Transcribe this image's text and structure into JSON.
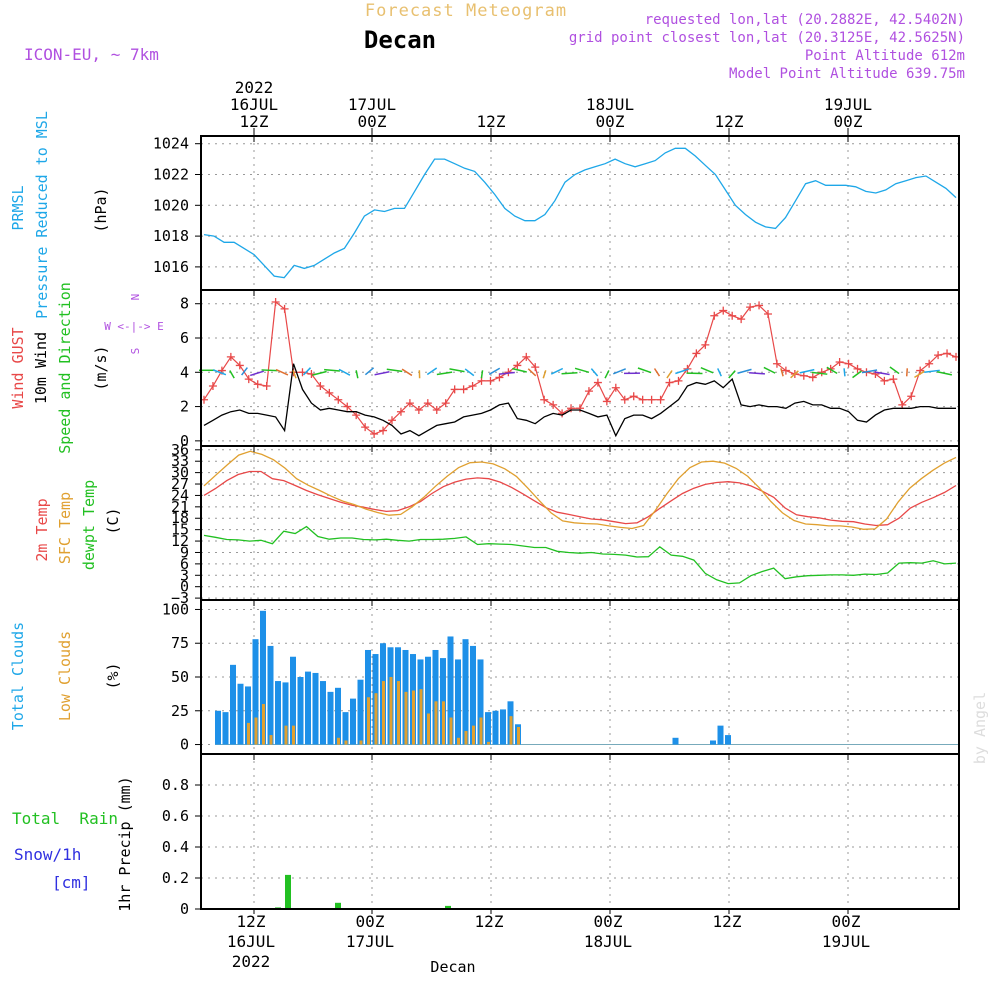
{
  "header": {
    "suptitle": "Forecast Meteogram",
    "location": "Decan",
    "model": "ICON-EU, ~ 7km",
    "requested": "requested lon,lat (20.2882E, 42.5402N)",
    "gridpoint": "grid point closest lon,lat (20.3125E, 42.5625N)",
    "altitude": "Point Altitude 612m",
    "model_altitude": "Model Point Altitude 639.75m",
    "footer_location": "Decan",
    "watermark": "by Angel"
  },
  "top_axis": [
    {
      "line1": "2022",
      "line2": "16JUL",
      "line3": "12Z"
    },
    {
      "line1": "",
      "line2": "17JUL",
      "line3": "00Z"
    },
    {
      "line1": "",
      "line2": "",
      "line3": "12Z"
    },
    {
      "line1": "",
      "line2": "18JUL",
      "line3": "00Z"
    },
    {
      "line1": "",
      "line2": "",
      "line3": "12Z"
    },
    {
      "line1": "",
      "line2": "19JUL",
      "line3": "00Z"
    }
  ],
  "bottom_axis": [
    {
      "line1": "12Z",
      "line2": "16JUL",
      "line3": "2022"
    },
    {
      "line1": "00Z",
      "line2": "17JUL",
      "line3": ""
    },
    {
      "line1": "12Z",
      "line2": "",
      "line3": ""
    },
    {
      "line1": "00Z",
      "line2": "18JUL",
      "line3": ""
    },
    {
      "line1": "12Z",
      "line2": "",
      "line3": ""
    },
    {
      "line1": "00Z",
      "line2": "19JUL",
      "line3": ""
    }
  ],
  "labels": {
    "prmsl": "PRMSL",
    "prmsl_long": "Pressure Reduced to MSL",
    "hpa": "(hPa)",
    "gust": "Wind GUST",
    "wind10m": "10m Wind",
    "wind_dir": "Speed and Direction",
    "ms": "(m/s)",
    "compass_n": "N",
    "compass_s": "S",
    "compass_we": "W <-|-> E",
    "temp2m": "2m Temp",
    "sfc_temp": "SFC Temp",
    "dewpt": "dewpt Temp",
    "degc": "(C)",
    "total_clouds": "Total Clouds",
    "low_clouds": "Low Clouds",
    "pct": "(%)",
    "total_rain": "Total  Rain",
    "snow": "Snow/1h",
    "cm": "[cm]",
    "precip": "1hr Precip (mm)"
  },
  "colors": {
    "pressure": "#1ea7e8",
    "gust": "#e84848",
    "wind": "#000000",
    "temp2m": "#e84848",
    "sfc_temp": "#e0a030",
    "dewpt": "#22c022",
    "total_clouds": "#1e90e8",
    "low_clouds": "#e0a030",
    "rain": "#22c022",
    "title": "#e8c070",
    "info": "#b050e0",
    "snow_label": "#3030e0"
  },
  "chart_data": [
    {
      "type": "line",
      "title": "PRMSL",
      "ylabel": "(hPa)",
      "ylim": [
        1014.5,
        1024.5
      ],
      "yticks": [
        1016,
        1018,
        1020,
        1022,
        1024
      ],
      "x_hours": [
        0,
        3,
        6,
        9,
        12,
        15,
        18,
        21,
        24,
        27,
        30,
        33,
        36,
        39,
        42,
        45,
        48,
        51,
        54,
        57,
        60,
        63,
        66,
        69,
        72,
        75
      ],
      "series": [
        {
          "name": "PRMSL",
          "x": [
            0,
            1,
            2,
            3,
            4,
            5,
            6,
            7,
            8,
            9,
            10,
            11,
            12,
            13,
            14,
            15,
            16,
            17,
            18,
            19,
            20,
            21,
            22,
            23,
            24,
            25,
            26,
            27,
            28,
            29,
            30,
            31,
            32,
            33,
            34,
            35,
            36,
            37,
            38,
            39,
            40,
            41,
            42,
            43,
            44,
            45,
            46,
            47,
            48,
            49,
            50,
            51,
            52,
            53,
            54,
            55,
            56,
            57,
            58,
            59,
            60,
            61,
            62,
            63,
            64,
            65,
            66,
            67,
            68,
            69,
            70,
            71,
            72,
            73,
            74,
            75
          ],
          "values": [
            1018.1,
            1018.0,
            1017.6,
            1017.6,
            1017.2,
            1016.8,
            1016.1,
            1015.4,
            1015.3,
            1016.1,
            1015.9,
            1016.1,
            1016.5,
            1016.9,
            1017.2,
            1018.2,
            1019.3,
            1019.7,
            1019.6,
            1019.8,
            1019.8,
            1020.9,
            1022.0,
            1023.0,
            1023.0,
            1022.7,
            1022.4,
            1022.2,
            1021.5,
            1020.7,
            1019.8,
            1019.3,
            1019.0,
            1019.0,
            1019.4,
            1020.3,
            1021.5,
            1022.0,
            1022.3,
            1022.5,
            1022.7,
            1023.0,
            1022.7,
            1022.5,
            1022.7,
            1022.9,
            1023.4,
            1023.7,
            1023.7,
            1023.2,
            1022.6,
            1022.0,
            1021.0,
            1020.0,
            1019.4,
            1018.9,
            1018.6,
            1018.5,
            1019.2,
            1020.3,
            1021.4,
            1021.6,
            1021.3,
            1021.3,
            1021.3,
            1021.2,
            1020.9,
            1020.8,
            1021.0,
            1021.4,
            1021.6,
            1021.8,
            1021.9,
            1021.5,
            1021.1,
            1020.5
          ]
        }
      ]
    },
    {
      "type": "line",
      "title": "Wind GUST / 10m Wind Speed and Direction",
      "ylabel": "(m/s)",
      "ylim": [
        -0.3,
        8.8
      ],
      "yticks": [
        0,
        2,
        4,
        6,
        8
      ],
      "series": [
        {
          "name": "Wind GUST",
          "values": [
            2.4,
            3.2,
            4.1,
            4.9,
            4.4,
            3.6,
            3.3,
            3.2,
            8.1,
            7.7,
            4.0,
            4.0,
            3.9,
            3.2,
            2.8,
            2.4,
            2.0,
            1.5,
            0.8,
            0.4,
            0.6,
            1.2,
            1.7,
            2.2,
            1.8,
            2.2,
            1.8,
            2.2,
            3.0,
            3.0,
            3.2,
            3.5,
            3.5,
            3.7,
            4.0,
            4.4,
            4.9,
            4.3,
            2.4,
            2.1,
            1.6,
            1.9,
            1.9,
            2.9,
            3.4,
            2.3,
            3.1,
            2.4,
            2.6,
            2.4,
            2.4,
            2.4,
            3.4,
            3.5,
            4.2,
            5.1,
            5.6,
            7.3,
            7.6,
            7.3,
            7.1,
            7.8,
            7.9,
            7.4,
            4.5,
            4.1,
            3.9,
            3.8,
            3.7,
            4.0,
            4.2,
            4.6,
            4.5,
            4.2,
            4.0,
            3.9,
            3.5,
            3.6,
            2.1,
            2.6,
            4.1,
            4.5,
            5.0,
            5.1,
            4.9
          ]
        },
        {
          "name": "10m Wind",
          "values": [
            0.9,
            1.2,
            1.5,
            1.7,
            1.8,
            1.6,
            1.6,
            1.5,
            1.4,
            0.6,
            4.5,
            3.0,
            2.2,
            1.8,
            1.9,
            1.8,
            1.7,
            1.7,
            1.5,
            1.4,
            1.2,
            0.9,
            0.4,
            0.6,
            0.3,
            0.6,
            0.9,
            1.0,
            1.1,
            1.4,
            1.5,
            1.6,
            1.8,
            2.1,
            2.2,
            1.3,
            1.2,
            1.0,
            1.4,
            1.6,
            1.5,
            1.8,
            1.8,
            1.6,
            1.4,
            1.5,
            0.3,
            1.3,
            1.5,
            1.5,
            1.3,
            1.6,
            2.0,
            2.4,
            3.2,
            3.4,
            3.3,
            3.5,
            3.1,
            3.6,
            2.1,
            2.0,
            2.1,
            2.0,
            2.0,
            1.9,
            2.2,
            2.3,
            2.1,
            2.1,
            1.9,
            1.9,
            1.7,
            1.2,
            1.1,
            1.5,
            1.8,
            1.9,
            1.9,
            1.9,
            2.0,
            2.0,
            1.9,
            1.9,
            1.9
          ]
        }
      ]
    },
    {
      "type": "line",
      "title": "2m Temp / SFC Temp / dewpt Temp",
      "ylabel": "(C)",
      "ylim": [
        -3.5,
        37
      ],
      "yticks": [
        -3,
        0,
        3,
        6,
        9,
        12,
        15,
        18,
        21,
        24,
        27,
        30,
        33,
        36
      ],
      "series": [
        {
          "name": "2m Temp",
          "values": [
            24.0,
            25.8,
            27.9,
            29.5,
            30.3,
            30.3,
            28.4,
            27.9,
            26.6,
            25.3,
            24.2,
            23.2,
            22.2,
            21.4,
            20.9,
            20.3,
            19.8,
            20.0,
            21.0,
            22.4,
            24.5,
            26.3,
            27.5,
            28.3,
            28.6,
            28.4,
            27.5,
            26.1,
            24.4,
            22.6,
            20.8,
            19.6,
            19.0,
            18.4,
            17.8,
            17.6,
            17.1,
            16.6,
            16.8,
            18.4,
            20.6,
            22.6,
            24.5,
            25.9,
            26.9,
            27.4,
            27.6,
            27.3,
            26.5,
            25.1,
            23.5,
            20.7,
            18.9,
            18.4,
            18.1,
            17.5,
            17.2,
            17.1,
            16.5,
            16.1,
            16.3,
            18.0,
            20.7,
            22.2,
            23.4,
            24.8,
            26.6
          ]
        },
        {
          "name": "SFC Temp",
          "values": [
            26.5,
            29.3,
            32.0,
            34.6,
            35.6,
            34.8,
            33.4,
            31.2,
            28.4,
            26.7,
            25.3,
            23.8,
            22.5,
            21.6,
            20.4,
            19.5,
            18.8,
            19.0,
            21.0,
            23.5,
            26.4,
            29.0,
            31.3,
            32.6,
            32.8,
            32.3,
            31.0,
            29.0,
            25.9,
            22.6,
            19.4,
            17.3,
            16.8,
            16.6,
            16.5,
            16.0,
            15.6,
            15.3,
            16.1,
            20.0,
            24.4,
            28.4,
            31.3,
            32.8,
            33.0,
            32.5,
            31.1,
            29.0,
            26.0,
            22.4,
            19.4,
            17.4,
            16.5,
            16.3,
            16.0,
            16.0,
            15.7,
            15.1,
            15.2,
            17.8,
            22.3,
            25.9,
            28.4,
            30.6,
            32.5,
            34.0
          ]
        },
        {
          "name": "dewpt Temp",
          "values": [
            13.5,
            13.0,
            12.4,
            12.3,
            12.0,
            12.2,
            11.3,
            14.6,
            14.0,
            15.8,
            13.2,
            12.5,
            12.8,
            12.8,
            12.4,
            12.3,
            12.5,
            12.2,
            12.0,
            12.4,
            12.4,
            12.5,
            12.7,
            13.1,
            11.1,
            11.3,
            11.2,
            11.1,
            10.7,
            10.3,
            10.3,
            9.3,
            9.0,
            8.8,
            9.0,
            8.6,
            8.5,
            8.3,
            7.8,
            7.9,
            10.5,
            8.3,
            8.0,
            7.0,
            3.5,
            1.8,
            0.8,
            1.0,
            2.9,
            4.0,
            4.9,
            2.1,
            2.6,
            2.9,
            3.0,
            3.1,
            3.1,
            3.0,
            3.3,
            3.2,
            3.6,
            6.2,
            6.3,
            6.2,
            6.8,
            6.0,
            6.2
          ]
        }
      ]
    },
    {
      "type": "bar",
      "title": "Total Clouds / Low Clouds",
      "ylabel": "(%)",
      "ylim": [
        -7,
        107
      ],
      "yticks": [
        0,
        25,
        50,
        75,
        100
      ],
      "series": [
        {
          "name": "Total Clouds",
          "values": [
            25,
            24,
            59,
            45,
            43,
            78,
            99,
            73,
            47,
            46,
            65,
            50,
            54,
            53,
            47,
            39,
            42,
            24,
            34,
            48,
            70,
            67,
            75,
            72,
            72,
            70,
            67,
            63,
            65,
            70,
            64,
            80,
            63,
            78,
            73,
            63,
            24,
            25,
            26,
            32,
            15,
            0,
            0,
            0,
            0,
            0,
            0,
            0,
            0,
            0,
            0,
            0,
            0,
            0,
            0,
            0,
            0,
            0,
            0,
            0,
            0,
            5,
            0,
            0,
            0,
            0,
            3,
            14,
            7,
            0,
            0,
            0,
            0,
            0,
            0,
            0,
            0,
            0,
            0,
            0
          ]
        },
        {
          "name": "Low Clouds",
          "values": [
            0,
            0,
            0,
            0,
            16,
            20,
            30,
            7,
            0,
            14,
            14,
            0,
            0,
            0,
            0,
            0,
            5,
            3,
            0,
            3,
            35,
            38,
            47,
            50,
            47,
            39,
            40,
            41,
            23,
            32,
            32,
            20,
            5,
            10,
            14,
            20,
            2,
            0,
            0,
            21,
            13,
            0,
            0,
            0,
            0,
            0,
            0,
            0,
            0,
            0,
            0,
            0,
            0,
            0,
            0,
            0,
            0,
            0,
            0,
            0,
            0,
            0,
            0,
            0,
            0,
            0,
            0,
            0,
            0,
            0,
            0,
            0,
            0,
            0,
            0,
            0,
            0,
            0,
            0,
            0
          ]
        }
      ]
    },
    {
      "type": "bar",
      "title": "Total Rain / Snow/1h",
      "ylabel": "1hr Precip (mm)",
      "ylim": [
        0,
        1.0
      ],
      "yticks": [
        0,
        0.2,
        0.4,
        0.6,
        0.8
      ],
      "series": [
        {
          "name": "Total Rain",
          "hours": [
            6,
            7,
            12,
            23
          ],
          "values": [
            0.01,
            0.22,
            0.04,
            0.02
          ]
        }
      ]
    }
  ]
}
